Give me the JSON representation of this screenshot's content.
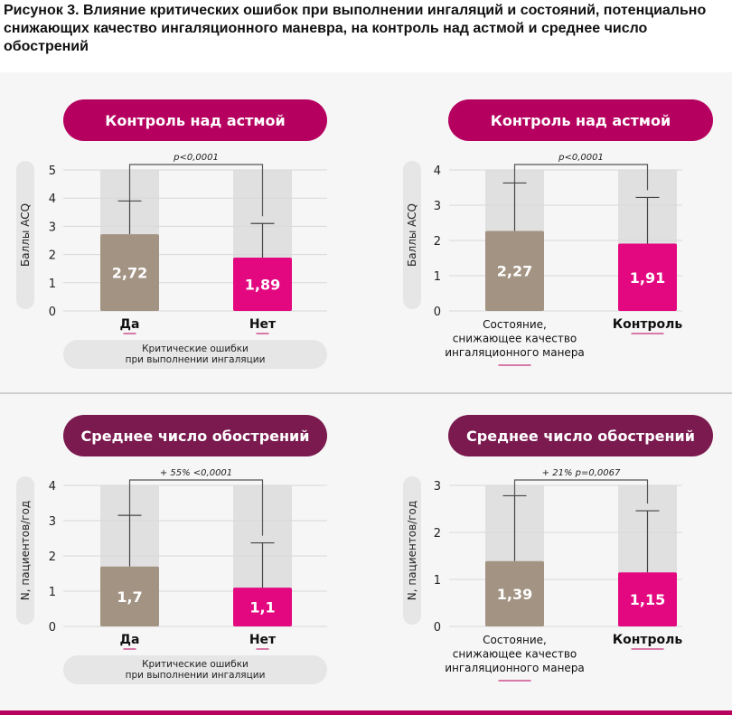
{
  "figure_title": "Рисунок 3. Влияние критических ошибок при выполнении ингаляций и состояний, потенциально снижающих качество ингаляционного маневра, на контроль над астмой и среднее число обострений",
  "colors": {
    "pill_top": "#b5005f",
    "pill_bottom": "#7b1a4f",
    "bar_yes": "#a39383",
    "bar_no": "#e3087f",
    "bg_bar": "#e0e0e0",
    "underline": "#d87aa8"
  },
  "chart_data": [
    {
      "type": "bar",
      "title": "Контроль над астмой",
      "ylabel": "Баллы ACQ",
      "ylim": [
        0,
        5
      ],
      "yticks": [
        0,
        1,
        2,
        3,
        4,
        5
      ],
      "categories": [
        [
          "Да"
        ],
        [
          "Нет"
        ]
      ],
      "values": [
        2.72,
        1.89
      ],
      "labels": [
        "2,72",
        "1,89"
      ],
      "error_upper": [
        3.9,
        3.1
      ],
      "annotation": "p<0,0001",
      "group_label": [
        "Критические ошибки",
        "при выполнении ингаляции"
      ]
    },
    {
      "type": "bar",
      "title": "Контроль над астмой",
      "ylabel": "Баллы ACQ",
      "ylim": [
        0,
        4
      ],
      "yticks": [
        0,
        1,
        2,
        3,
        4
      ],
      "categories": [
        [
          "Состояние,",
          "снижающее качество",
          "ингаляционного манера"
        ],
        [
          "Контроль"
        ]
      ],
      "values": [
        2.27,
        1.91
      ],
      "labels": [
        "2,27",
        "1,91"
      ],
      "error_upper": [
        3.63,
        3.22
      ],
      "annotation": "p<0,0001",
      "group_label": []
    },
    {
      "type": "bar",
      "title": "Среднее число обострений",
      "ylabel": "N, пациентов/год",
      "ylim": [
        0,
        4
      ],
      "yticks": [
        0,
        1,
        2,
        3,
        4
      ],
      "categories": [
        [
          "Да"
        ],
        [
          "Нет"
        ]
      ],
      "values": [
        1.7,
        1.1
      ],
      "labels": [
        "1,7",
        "1,1"
      ],
      "error_upper": [
        3.15,
        2.37
      ],
      "annotation": "+ 55% <0,0001",
      "group_label": [
        "Критические ошибки",
        "при выполнении ингаляции"
      ]
    },
    {
      "type": "bar",
      "title": "Среднее число обострений",
      "ylabel": "N, пациентов/год",
      "ylim": [
        0,
        3
      ],
      "yticks": [
        0,
        1,
        2,
        3
      ],
      "categories": [
        [
          "Состояние,",
          "снижающее качество",
          "ингаляционного манера"
        ],
        [
          "Контроль"
        ]
      ],
      "values": [
        1.39,
        1.15
      ],
      "labels": [
        "1,39",
        "1,15"
      ],
      "error_upper": [
        2.78,
        2.46
      ],
      "annotation": "+ 21% p=0,0067",
      "group_label": []
    }
  ]
}
